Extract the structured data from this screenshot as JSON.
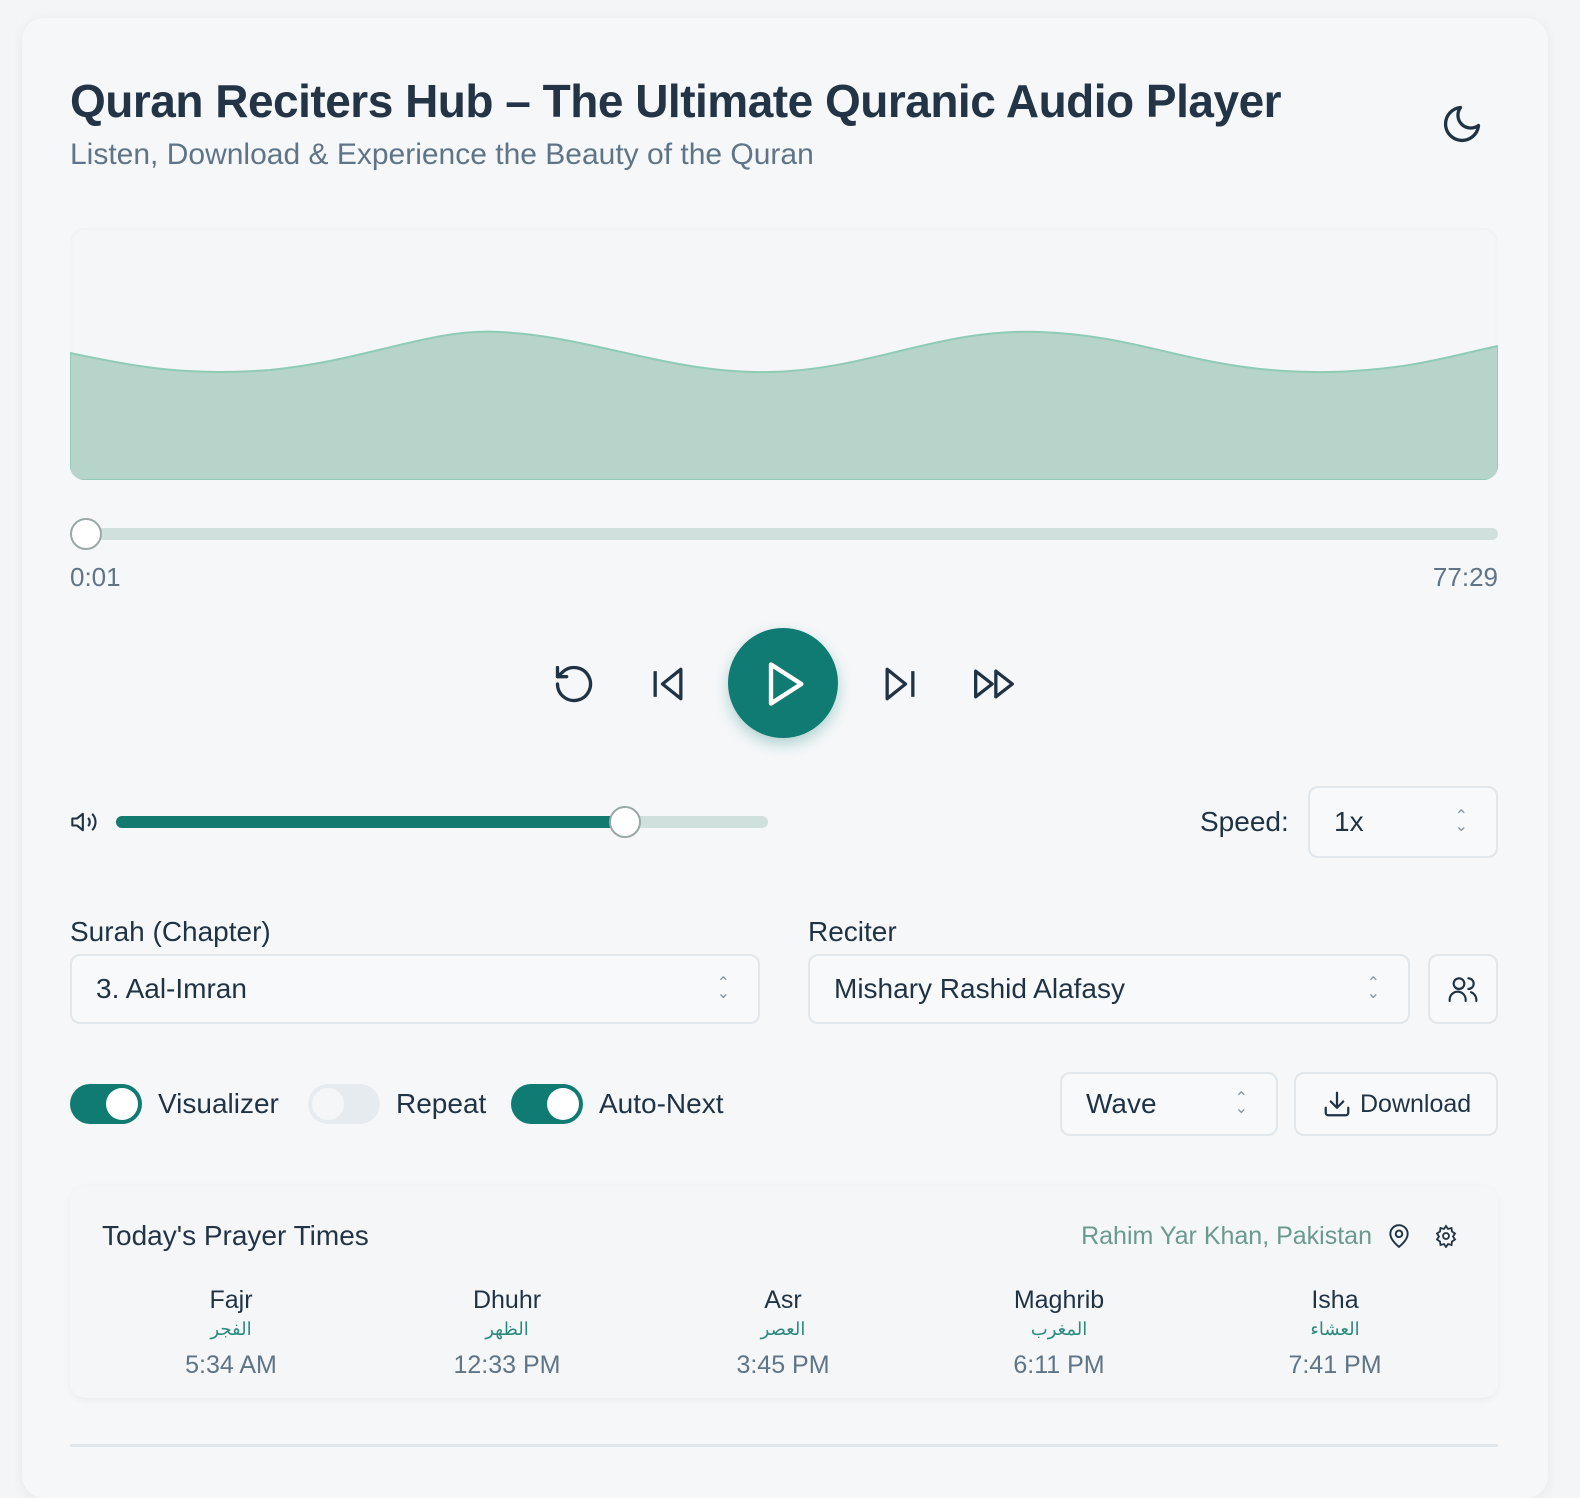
{
  "header": {
    "title": "Quran Reciters Hub – The Ultimate Quranic Audio Player",
    "subtitle": "Listen, Download & Experience the Beauty of the Quran",
    "theme_icon": "moon-icon"
  },
  "player": {
    "current_time": "0:01",
    "duration": "77:29",
    "progress_fraction": 0.0002,
    "volume_fraction": 0.78,
    "speed_label": "Speed:",
    "speed_value": "1x",
    "accent": "#0f7b72"
  },
  "selection": {
    "surah_label": "Surah (Chapter)",
    "surah_value": "3. Aal-Imran",
    "reciter_label": "Reciter",
    "reciter_value": "Mishary Rashid Alafasy"
  },
  "options": {
    "visualizer": {
      "label": "Visualizer",
      "on": true
    },
    "repeat": {
      "label": "Repeat",
      "on": false
    },
    "auto_next": {
      "label": "Auto-Next",
      "on": true
    },
    "visualizer_style": "Wave",
    "download_label": "Download"
  },
  "prayer": {
    "title": "Today's Prayer Times",
    "location": "Rahim Yar Khan, Pakistan",
    "times": [
      {
        "name": "Fajr",
        "arabic": "الفجر",
        "time": "5:34 AM"
      },
      {
        "name": "Dhuhr",
        "arabic": "الظهر",
        "time": "12:33 PM"
      },
      {
        "name": "Asr",
        "arabic": "العصر",
        "time": "3:45 PM"
      },
      {
        "name": "Maghrib",
        "arabic": "المغرب",
        "time": "6:11 PM"
      },
      {
        "name": "Isha",
        "arabic": "العشاء",
        "time": "7:41 PM"
      }
    ]
  }
}
